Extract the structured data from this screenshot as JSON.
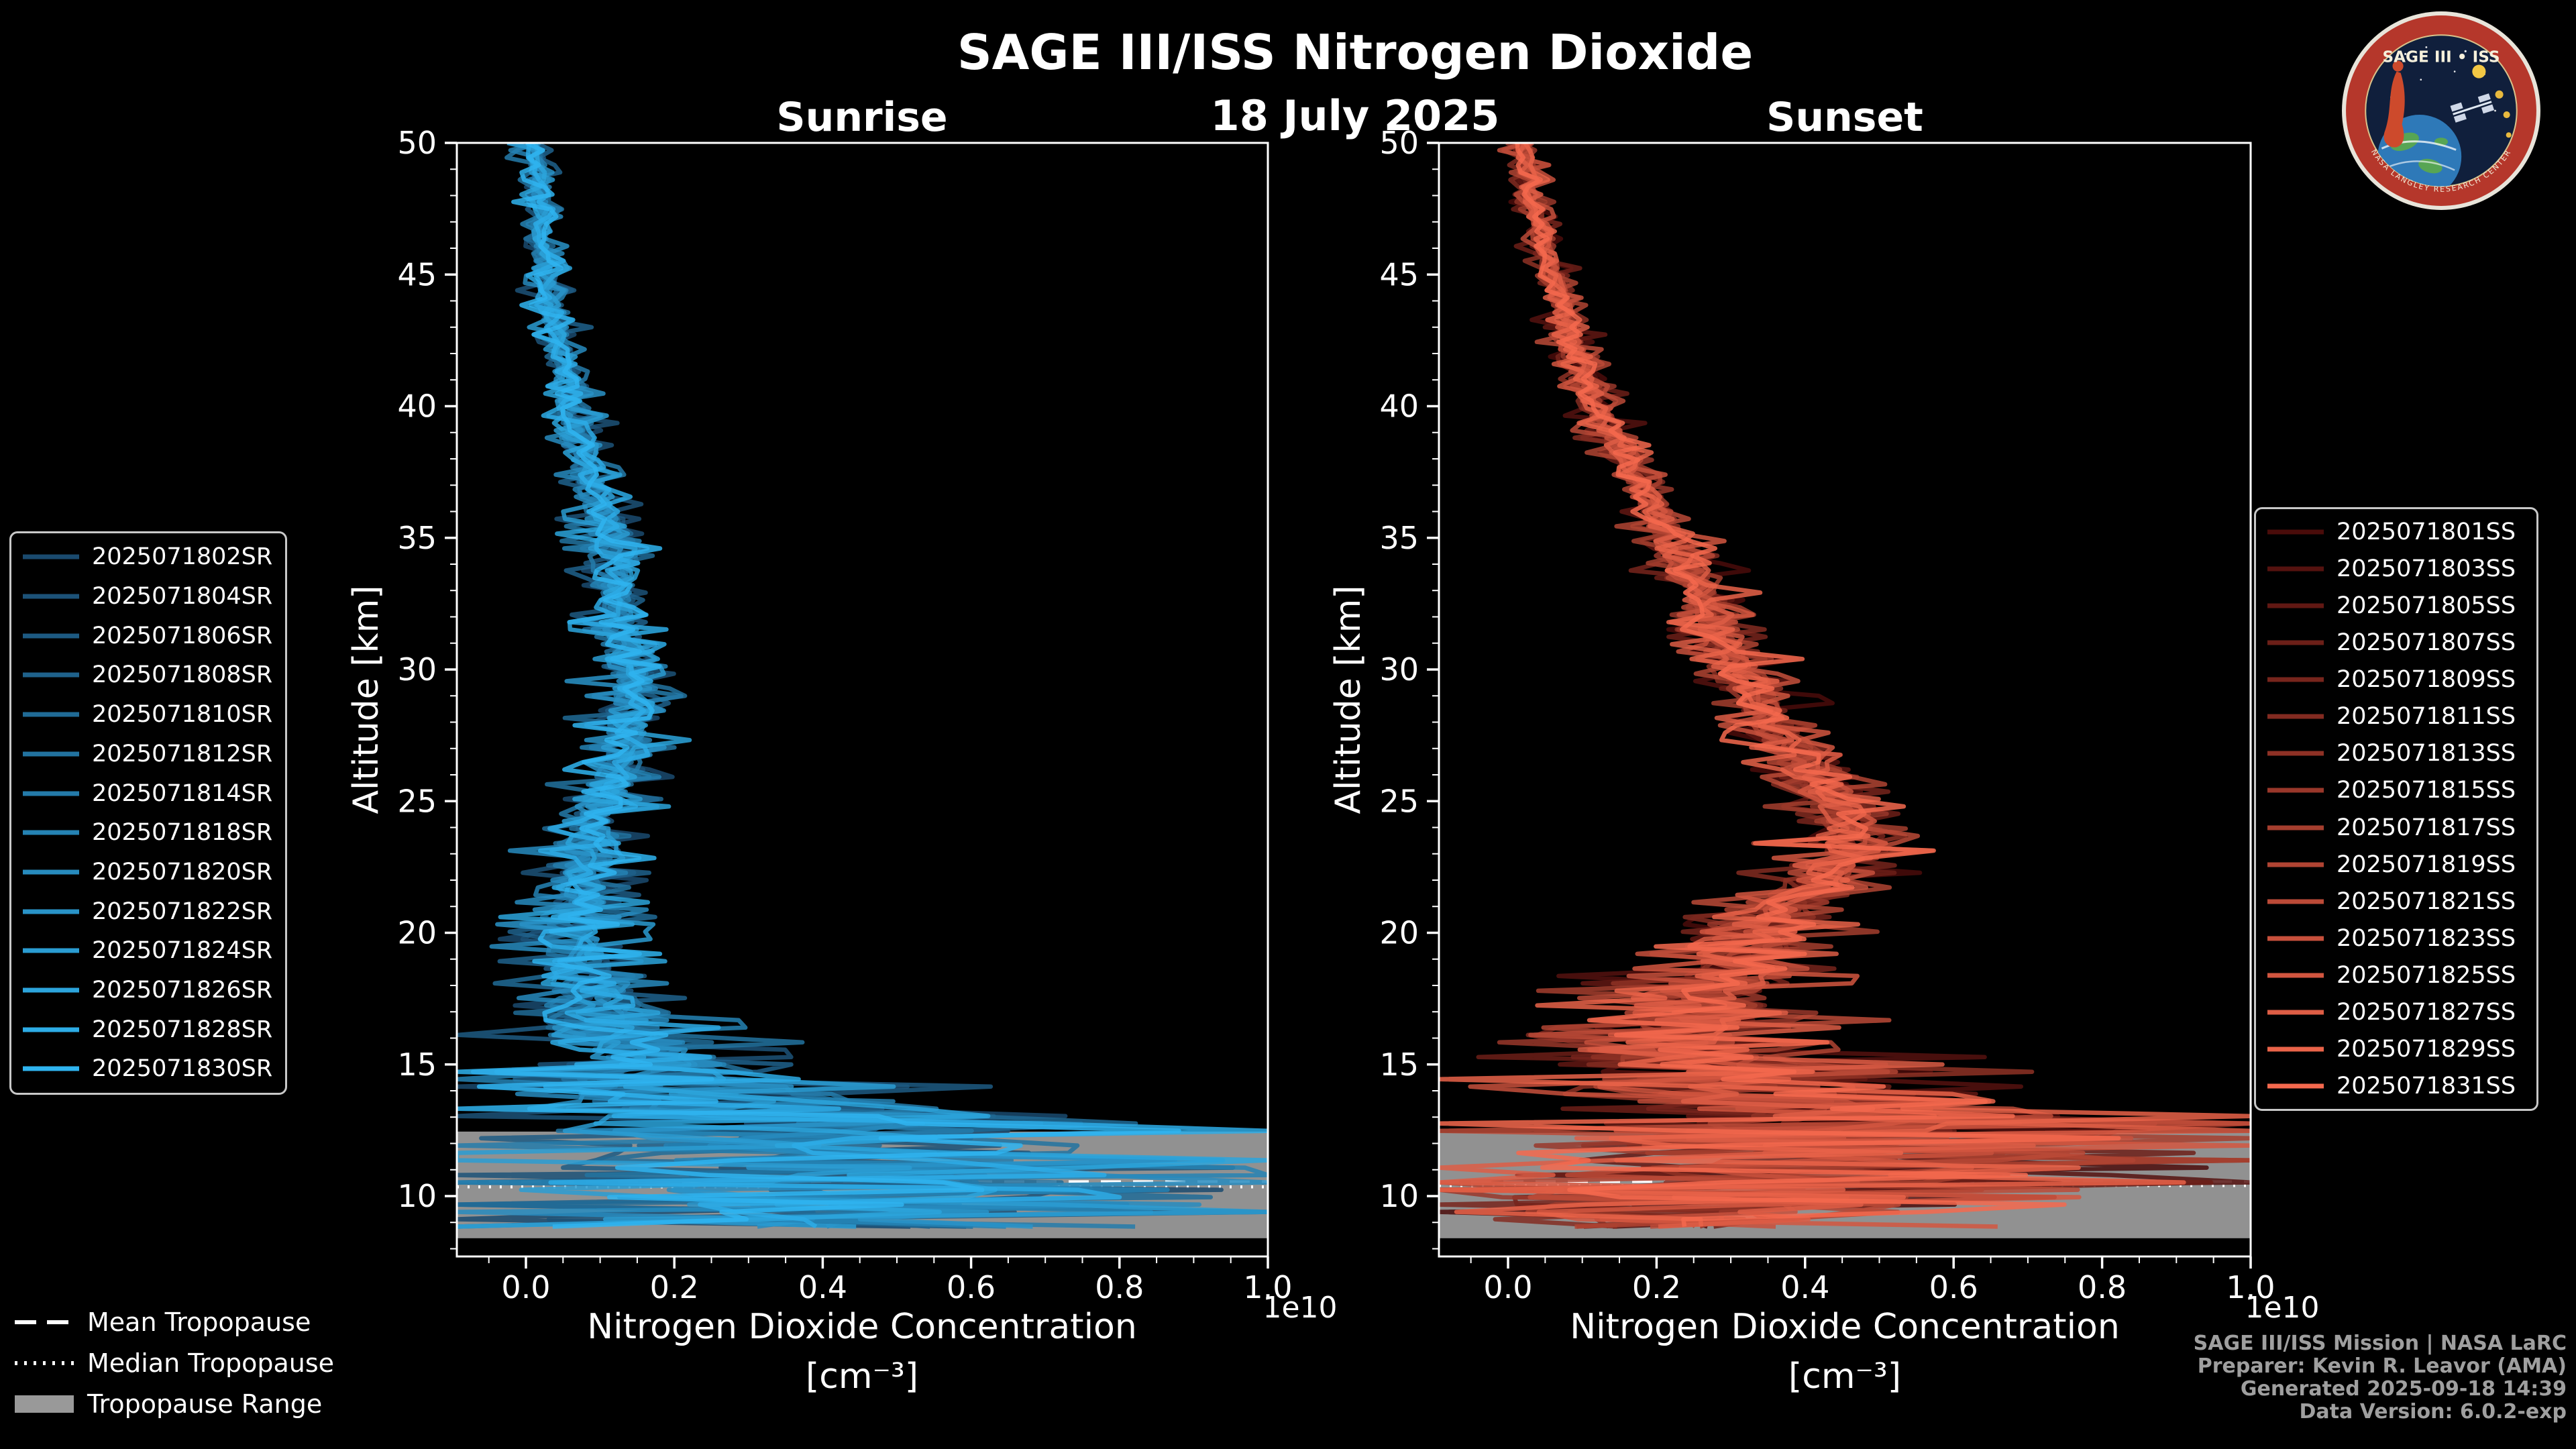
{
  "header": {
    "title": "SAGE III/ISS Nitrogen Dioxide",
    "date": "18 July 2025"
  },
  "axes": {
    "x_label_line1": "Nitrogen Dioxide Concentration",
    "x_label_line2": "[cm⁻³]",
    "y_label": "Altitude [km]",
    "offset_text": "1e10"
  },
  "tropopause_legend": {
    "mean": "Mean Tropopause",
    "median": "Median Tropopause",
    "range": "Tropopause Range"
  },
  "credits": [
    "SAGE III/ISS Mission | NASA LaRC",
    "Preparer: Kevin R. Leavor (AMA)",
    "Generated 2025-09-18 14:39",
    "Data Version: 6.0.2-exp"
  ],
  "logo": {
    "title": "SAGE III • ISS",
    "ring_text": "NASA LANGLEY RESEARCH CENTER"
  },
  "colors": {
    "background": "#000000",
    "text": "#ffffff",
    "credits_text": "#9f9f9f",
    "tropopause_band": "#999999"
  },
  "chart_data": [
    {
      "type": "line",
      "panel": "Sunrise",
      "legend_side": "left",
      "grid": false,
      "xlabel": "Nitrogen Dioxide Concentration [cm⁻³]",
      "ylabel": "Altitude [km]",
      "x_scale_factor": "1e10",
      "xlim": [
        -0.093,
        1.0
      ],
      "ylim": [
        7.7,
        50
      ],
      "x_ticks": [
        0.0,
        0.2,
        0.4,
        0.6,
        0.8,
        1.0
      ],
      "y_ticks": [
        10,
        15,
        20,
        25,
        30,
        35,
        40,
        45,
        50
      ],
      "color_start": "#1a4a6e",
      "color_end": "#2fb4f0",
      "series_ids": [
        "2025071802SR",
        "2025071804SR",
        "2025071806SR",
        "2025071808SR",
        "2025071810SR",
        "2025071812SR",
        "2025071814SR",
        "2025071818SR",
        "2025071820SR",
        "2025071822SR",
        "2025071824SR",
        "2025071826SR",
        "2025071828SR",
        "2025071830SR"
      ],
      "mean_profile": {
        "altitude_km": [
          9,
          10,
          11,
          12,
          13,
          14,
          15,
          16,
          17,
          18,
          19,
          20,
          21,
          22,
          23,
          24,
          25,
          26,
          27,
          28,
          29,
          30,
          31,
          32,
          33,
          34,
          35,
          36,
          37,
          38,
          39,
          40,
          42,
          44,
          46,
          48,
          50
        ],
        "concentration_1e10": [
          0.35,
          0.45,
          0.42,
          0.38,
          0.3,
          0.22,
          0.17,
          0.12,
          0.1,
          0.08,
          0.06,
          0.06,
          0.07,
          0.08,
          0.08,
          0.09,
          0.1,
          0.12,
          0.14,
          0.14,
          0.15,
          0.14,
          0.13,
          0.12,
          0.12,
          0.13,
          0.11,
          0.1,
          0.09,
          0.08,
          0.07,
          0.06,
          0.05,
          0.03,
          0.02,
          0.02,
          0.01
        ]
      },
      "spread_1e10": [
        0.45,
        0.55,
        0.6,
        0.55,
        0.45,
        0.28,
        0.18,
        0.15,
        0.12,
        0.1,
        0.08,
        0.07,
        0.06,
        0.06,
        0.05,
        0.05,
        0.05,
        0.05,
        0.05,
        0.05,
        0.05,
        0.05,
        0.045,
        0.045,
        0.04,
        0.04,
        0.04,
        0.035,
        0.035,
        0.03,
        0.03,
        0.03,
        0.025,
        0.025,
        0.02,
        0.02,
        0.02
      ],
      "tropopause": {
        "mean_km": 10.55,
        "median_km": 10.35,
        "range_km": [
          8.4,
          12.45
        ]
      }
    },
    {
      "type": "line",
      "panel": "Sunset",
      "legend_side": "right",
      "grid": false,
      "xlabel": "Nitrogen Dioxide Concentration [cm⁻³]",
      "ylabel": "Altitude [km]",
      "x_scale_factor": "1e10",
      "xlim": [
        -0.093,
        1.0
      ],
      "ylim": [
        7.7,
        50
      ],
      "x_ticks": [
        0.0,
        0.2,
        0.4,
        0.6,
        0.8,
        1.0
      ],
      "y_ticks": [
        10,
        15,
        20,
        25,
        30,
        35,
        40,
        45,
        50
      ],
      "color_start": "#4a0c0a",
      "color_end": "#f4694e",
      "series_ids": [
        "2025071801SS",
        "2025071803SS",
        "2025071805SS",
        "2025071807SS",
        "2025071809SS",
        "2025071811SS",
        "2025071813SS",
        "2025071815SS",
        "2025071817SS",
        "2025071819SS",
        "2025071821SS",
        "2025071823SS",
        "2025071825SS",
        "2025071827SS",
        "2025071829SS",
        "2025071831SS"
      ],
      "mean_profile": {
        "altitude_km": [
          9,
          10,
          11,
          12,
          13,
          14,
          15,
          16,
          17,
          18,
          19,
          20,
          21,
          22,
          23,
          24,
          25,
          26,
          27,
          28,
          29,
          30,
          31,
          32,
          33,
          34,
          35,
          36,
          37,
          38,
          39,
          40,
          42,
          44,
          46,
          48,
          50
        ],
        "concentration_1e10": [
          0.2,
          0.3,
          0.45,
          0.5,
          0.48,
          0.38,
          0.25,
          0.2,
          0.24,
          0.29,
          0.31,
          0.34,
          0.38,
          0.42,
          0.47,
          0.46,
          0.44,
          0.41,
          0.38,
          0.35,
          0.33,
          0.31,
          0.29,
          0.28,
          0.26,
          0.24,
          0.22,
          0.2,
          0.18,
          0.16,
          0.14,
          0.12,
          0.09,
          0.07,
          0.05,
          0.03,
          0.02
        ]
      },
      "spread_1e10": [
        0.3,
        0.5,
        0.6,
        0.6,
        0.5,
        0.35,
        0.25,
        0.2,
        0.16,
        0.13,
        0.11,
        0.1,
        0.09,
        0.08,
        0.07,
        0.07,
        0.06,
        0.06,
        0.055,
        0.05,
        0.05,
        0.05,
        0.045,
        0.045,
        0.04,
        0.04,
        0.04,
        0.035,
        0.03,
        0.03,
        0.03,
        0.03,
        0.025,
        0.025,
        0.02,
        0.02,
        0.02
      ],
      "tropopause": {
        "mean_km": 10.55,
        "median_km": 10.4,
        "range_km": [
          8.4,
          12.4
        ]
      }
    }
  ]
}
